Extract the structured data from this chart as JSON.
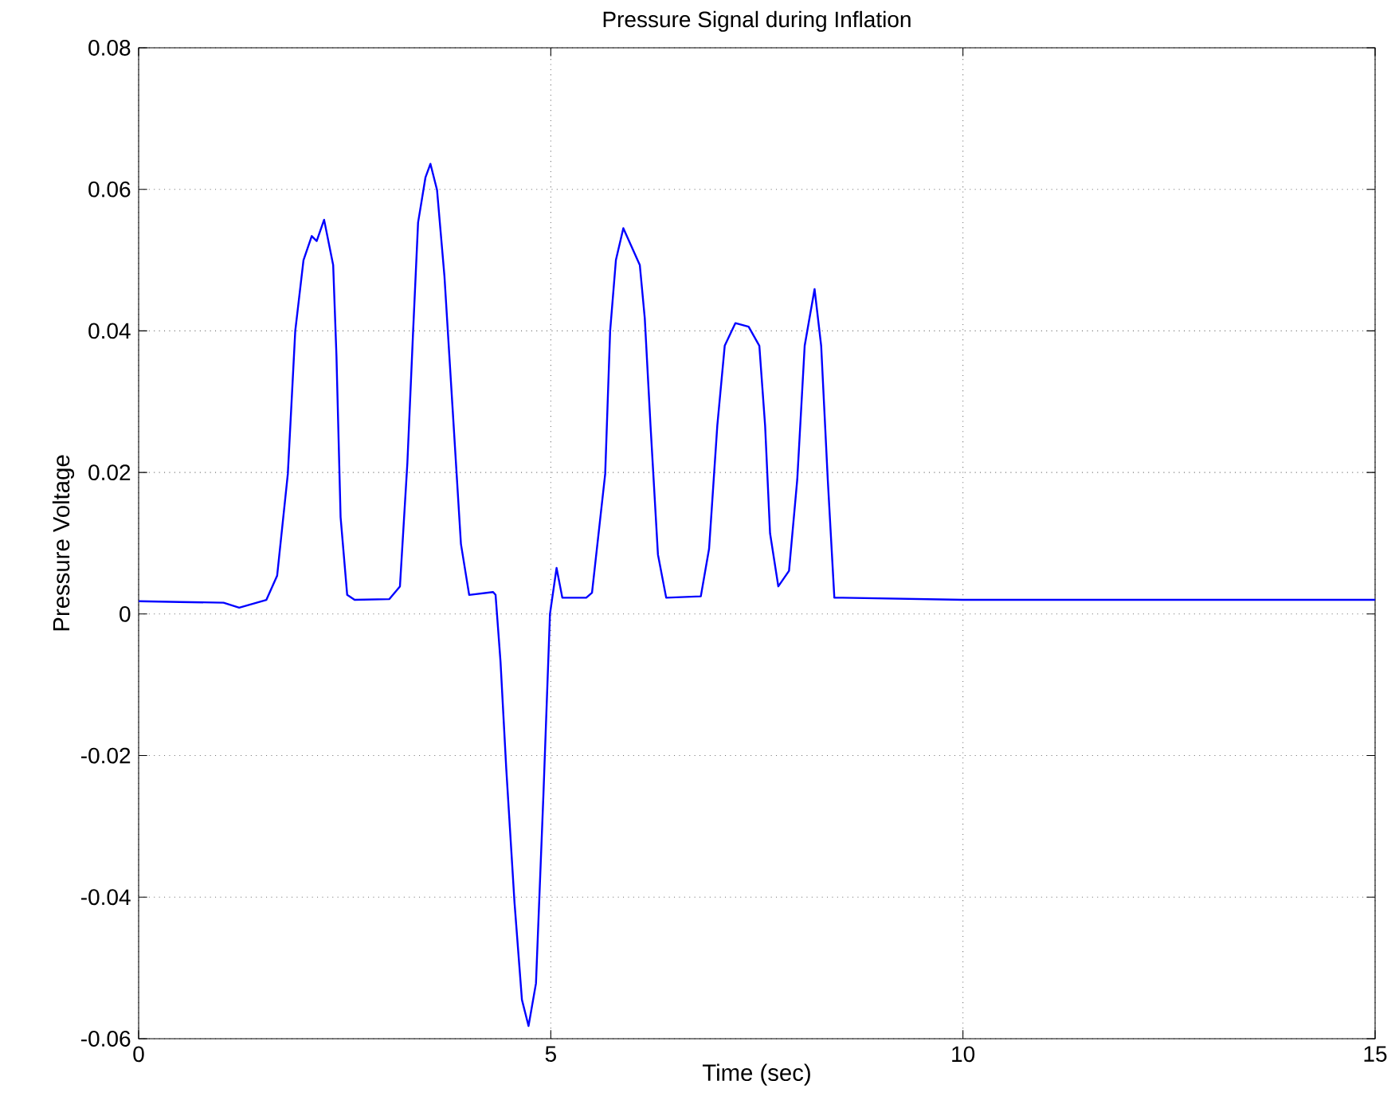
{
  "chart_data": {
    "type": "line",
    "title": "Pressure Signal during Inflation",
    "xlabel": "Time (sec)",
    "ylabel": "Pressure Voltage",
    "xlim": [
      0,
      15
    ],
    "ylim": [
      -0.06,
      0.08
    ],
    "xticks": [
      0,
      5,
      10,
      15
    ],
    "yticks": [
      -0.06,
      -0.04,
      -0.02,
      0,
      0.02,
      0.04,
      0.06,
      0.08
    ],
    "grid": true,
    "series": [
      {
        "color": "#0000ff",
        "x": [
          0,
          0.5,
          1.03,
          1.22,
          1.55,
          1.68,
          1.81,
          1.9,
          2.0,
          2.1,
          2.16,
          2.25,
          2.36,
          2.4,
          2.45,
          2.53,
          2.62,
          3.04,
          3.17,
          3.26,
          3.33,
          3.39,
          3.48,
          3.54,
          3.62,
          3.71,
          3.81,
          3.91,
          4.01,
          4.3,
          4.33,
          4.39,
          4.46,
          4.56,
          4.65,
          4.73,
          4.82,
          4.91,
          4.99,
          5.07,
          5.14,
          5.43,
          5.5,
          5.66,
          5.72,
          5.79,
          5.88,
          6.08,
          6.14,
          6.21,
          6.3,
          6.4,
          6.82,
          6.92,
          7.02,
          7.11,
          7.24,
          7.4,
          7.53,
          7.6,
          7.66,
          7.76,
          7.89,
          7.99,
          8.08,
          8.2,
          8.28,
          8.36,
          8.44,
          8.54,
          10,
          12,
          15
        ],
        "values": [
          0.0018,
          0.0017,
          0.0016,
          0.0009,
          0.002,
          0.0054,
          0.0198,
          0.04,
          0.05,
          0.0534,
          0.0527,
          0.0557,
          0.0493,
          0.0364,
          0.0137,
          0.0027,
          0.002,
          0.0021,
          0.0039,
          0.0213,
          0.04,
          0.0553,
          0.0617,
          0.0636,
          0.0599,
          0.0477,
          0.0288,
          0.0099,
          0.0027,
          0.0031,
          0.0027,
          -0.0067,
          -0.0219,
          -0.0408,
          -0.0545,
          -0.0582,
          -0.0522,
          -0.0257,
          0.0,
          0.0065,
          0.0023,
          0.0023,
          0.003,
          0.0198,
          0.04,
          0.05,
          0.0545,
          0.0493,
          0.0418,
          0.0266,
          0.0084,
          0.0023,
          0.0025,
          0.0092,
          0.0266,
          0.0379,
          0.0411,
          0.0406,
          0.0379,
          0.0266,
          0.0114,
          0.0039,
          0.0061,
          0.019,
          0.0379,
          0.0459,
          0.0379,
          0.019,
          0.0023,
          0.0023,
          0.002,
          0.002,
          0.002
        ]
      }
    ]
  }
}
